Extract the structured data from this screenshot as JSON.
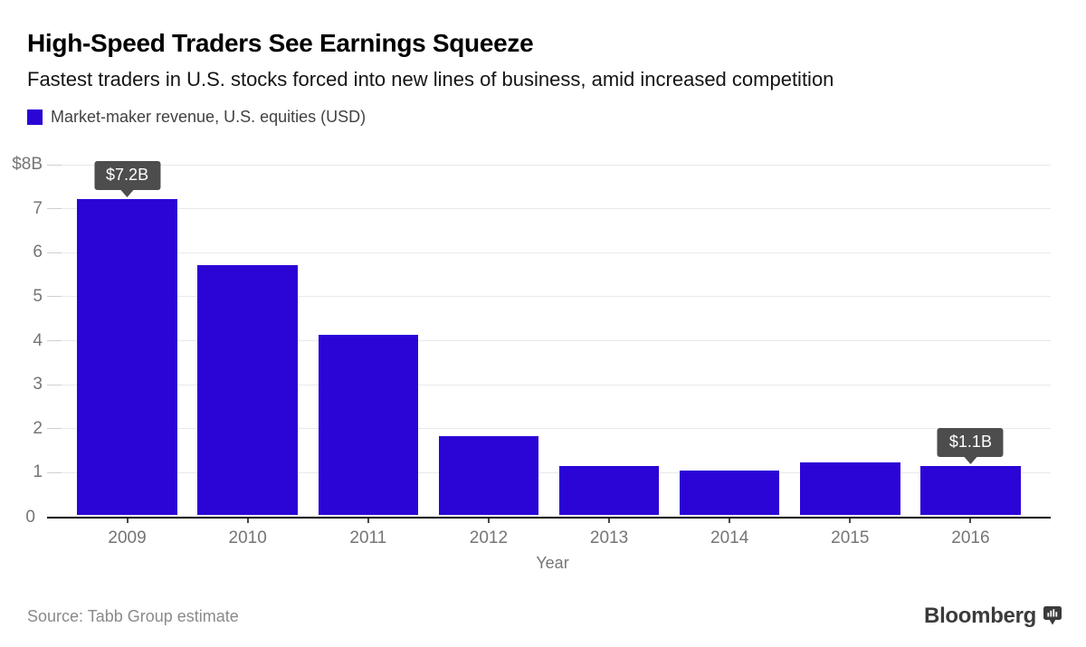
{
  "header": {
    "title": "High-Speed Traders See Earnings Squeeze",
    "subtitle": "Fastest traders in U.S. stocks forced into new lines of business, amid increased competition",
    "legend": {
      "label": "Market-maker revenue, U.S. equities (USD)",
      "swatch_color": "#2b04d6"
    }
  },
  "chart_data": {
    "type": "bar",
    "title": "Market-maker revenue, U.S. equities (USD)",
    "categories": [
      "2009",
      "2010",
      "2011",
      "2012",
      "2013",
      "2014",
      "2015",
      "2016"
    ],
    "values": [
      7.2,
      5.7,
      4.1,
      1.8,
      1.1,
      1.0,
      1.2,
      1.1
    ],
    "xlabel": "Year",
    "ylabel": "",
    "ylim": [
      0,
      8
    ],
    "y_ticks": [
      "$8B",
      "7",
      "6",
      "5",
      "4",
      "3",
      "2",
      "1",
      "0"
    ],
    "y_tick_values": [
      8,
      7,
      6,
      5,
      4,
      3,
      2,
      1,
      0
    ],
    "grid": true,
    "legend_position": "top-left",
    "bar_color": "#2b04d6",
    "annotations": [
      {
        "index": 0,
        "category": "2009",
        "label": "$7.2B"
      },
      {
        "index": 7,
        "category": "2016",
        "label": "$1.1B"
      }
    ]
  },
  "footer": {
    "source": "Source: Tabb Group estimate",
    "brand": "Bloomberg"
  }
}
